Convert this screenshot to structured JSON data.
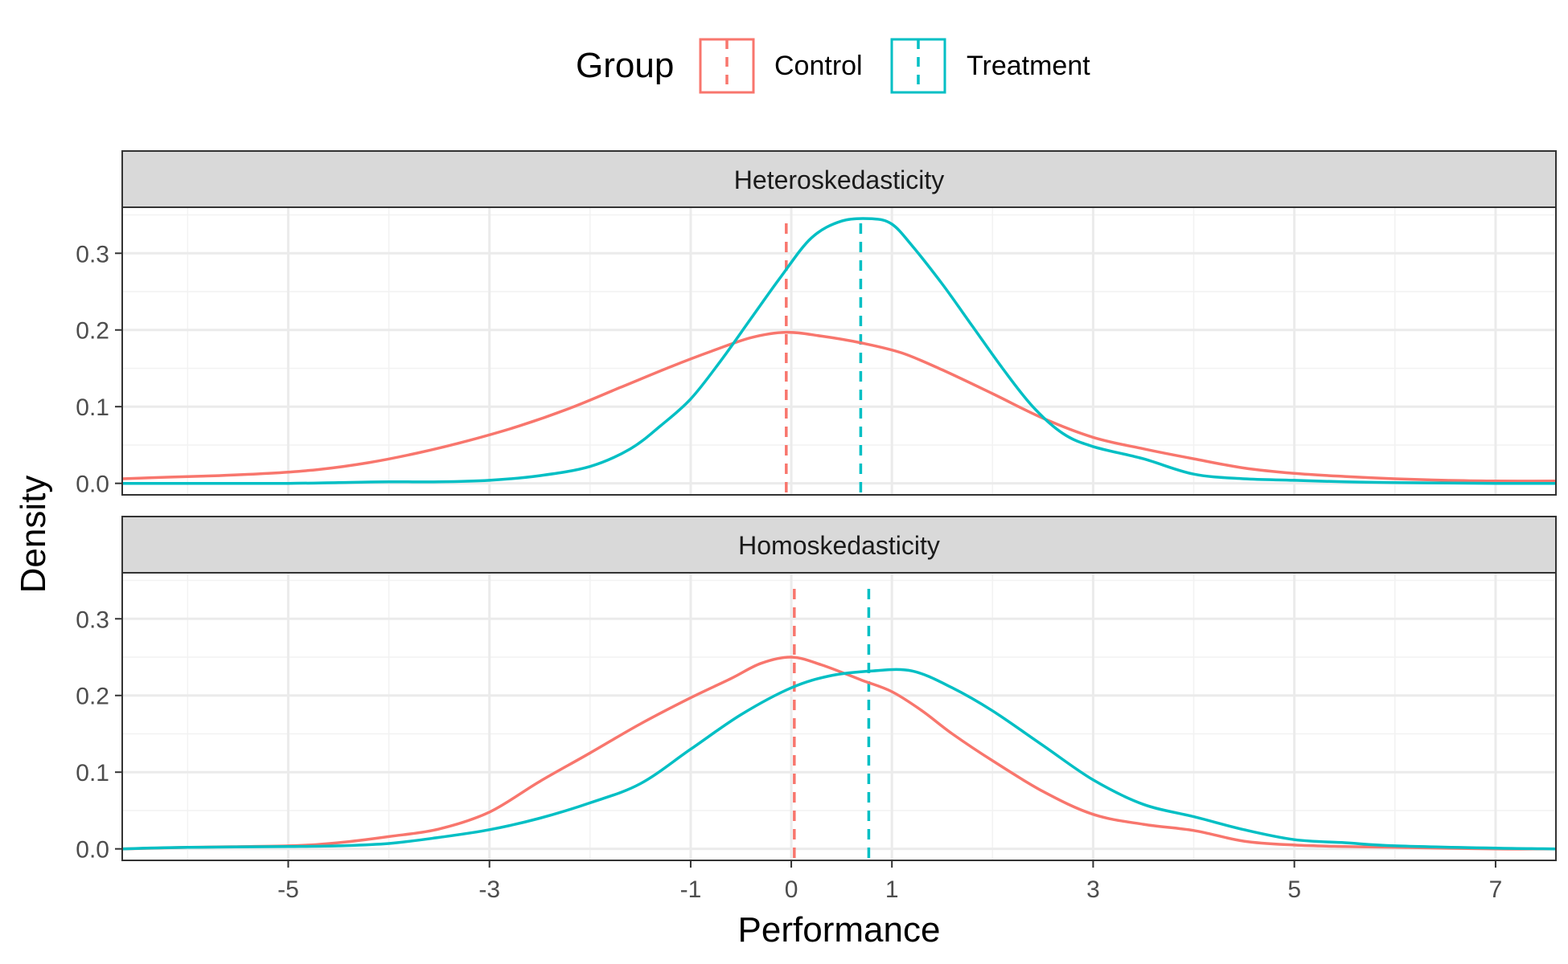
{
  "chart_data": {
    "type": "line",
    "xlabel": "Performance",
    "ylabel": "Density",
    "xlim": [
      -6.65,
      7.6
    ],
    "ylim": [
      -0.015,
      0.36
    ],
    "x_ticks": [
      -5,
      -3,
      -1,
      0,
      1,
      3,
      5,
      7
    ],
    "x_tick_labels": [
      "-5",
      "-3",
      "-1",
      "0",
      "1",
      "3",
      "5",
      "7"
    ],
    "y_ticks": [
      0.0,
      0.1,
      0.2,
      0.3
    ],
    "y_tick_labels": [
      "0.0",
      "0.1",
      "0.2",
      "0.3"
    ],
    "grid": true,
    "legend": {
      "title": "Group",
      "placement": "top",
      "items": [
        {
          "label": "Control",
          "color": "#F8766D"
        },
        {
          "label": "Treatment",
          "color": "#00BFC4"
        }
      ]
    },
    "panels": [
      {
        "label": "Heteroskedasticity",
        "means": {
          "Control": -0.05,
          "Treatment": 0.69
        },
        "series": [
          {
            "name": "Control",
            "color": "#F8766D",
            "x": [
              -6.65,
              -6.2,
              -5.7,
              -5.2,
              -4.7,
              -4.2,
              -3.7,
              -3.2,
              -2.7,
              -2.2,
              -1.7,
              -1.2,
              -0.8,
              -0.4,
              -0.05,
              0.3,
              0.7,
              1.1,
              1.5,
              2.0,
              2.5,
              3.0,
              3.5,
              4.0,
              4.5,
              5.0,
              5.5,
              6.0,
              6.5,
              7.0,
              7.6
            ],
            "values": [
              0.006,
              0.008,
              0.01,
              0.013,
              0.018,
              0.027,
              0.04,
              0.056,
              0.075,
              0.098,
              0.125,
              0.152,
              0.172,
              0.19,
              0.197,
              0.192,
              0.183,
              0.17,
              0.148,
              0.117,
              0.085,
              0.06,
              0.045,
              0.032,
              0.02,
              0.013,
              0.009,
              0.006,
              0.004,
              0.003,
              0.003
            ]
          },
          {
            "name": "Treatment",
            "color": "#00BFC4",
            "x": [
              -6.65,
              -6.0,
              -5.0,
              -4.5,
              -4.0,
              -3.5,
              -3.0,
              -2.5,
              -2.0,
              -1.6,
              -1.3,
              -1.0,
              -0.7,
              -0.4,
              -0.1,
              0.2,
              0.5,
              0.8,
              1.0,
              1.2,
              1.5,
              1.8,
              2.1,
              2.4,
              2.7,
              3.0,
              3.5,
              4.0,
              4.5,
              5.0,
              5.5,
              6.0,
              7.0,
              7.6
            ],
            "values": [
              0.0,
              0.0,
              0.0,
              0.001,
              0.002,
              0.002,
              0.004,
              0.01,
              0.022,
              0.045,
              0.075,
              0.11,
              0.16,
              0.215,
              0.27,
              0.32,
              0.342,
              0.345,
              0.338,
              0.31,
              0.26,
              0.205,
              0.15,
              0.1,
              0.065,
              0.048,
              0.032,
              0.012,
              0.006,
              0.004,
              0.002,
              0.001,
              0.0,
              0.0
            ]
          }
        ]
      },
      {
        "label": "Homoskedasticity",
        "means": {
          "Control": 0.03,
          "Treatment": 0.77
        },
        "series": [
          {
            "name": "Control",
            "color": "#F8766D",
            "x": [
              -6.65,
              -6.0,
              -5.0,
              -4.5,
              -4.0,
              -3.5,
              -3.0,
              -2.5,
              -2.0,
              -1.5,
              -1.0,
              -0.6,
              -0.3,
              0.0,
              0.3,
              0.7,
              1.0,
              1.3,
              1.6,
              2.0,
              2.5,
              3.0,
              3.5,
              4.0,
              4.5,
              5.0,
              5.5,
              6.0,
              7.0,
              7.6
            ],
            "values": [
              0.0,
              0.002,
              0.004,
              0.008,
              0.016,
              0.026,
              0.048,
              0.088,
              0.125,
              0.163,
              0.197,
              0.222,
              0.242,
              0.25,
              0.24,
              0.22,
              0.205,
              0.18,
              0.15,
              0.115,
              0.075,
              0.045,
              0.032,
              0.024,
              0.01,
              0.005,
              0.003,
              0.002,
              0.0,
              0.0
            ]
          },
          {
            "name": "Treatment",
            "color": "#00BFC4",
            "x": [
              -6.65,
              -6.0,
              -5.0,
              -4.5,
              -4.0,
              -3.5,
              -3.0,
              -2.5,
              -2.0,
              -1.5,
              -1.0,
              -0.5,
              0.0,
              0.4,
              0.8,
              1.2,
              1.6,
              2.0,
              2.5,
              3.0,
              3.5,
              4.0,
              4.5,
              5.0,
              5.5,
              6.0,
              7.0,
              7.6
            ],
            "values": [
              0.0,
              0.002,
              0.003,
              0.004,
              0.007,
              0.015,
              0.025,
              0.04,
              0.06,
              0.085,
              0.13,
              0.175,
              0.21,
              0.226,
              0.232,
              0.232,
              0.21,
              0.18,
              0.135,
              0.09,
              0.058,
              0.042,
              0.025,
              0.012,
              0.008,
              0.004,
              0.001,
              0.0
            ]
          }
        ]
      }
    ]
  }
}
